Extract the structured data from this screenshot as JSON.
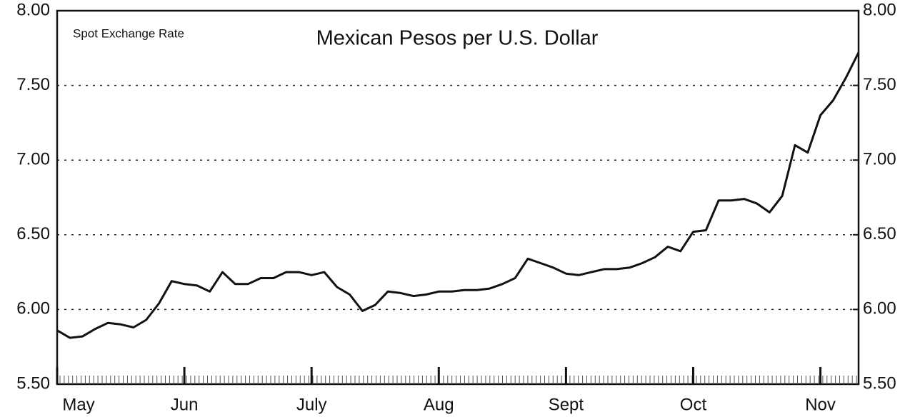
{
  "chart_data": {
    "type": "line",
    "title": "Mexican Pesos per U.S. Dollar",
    "subtitle": "Spot Exchange Rate",
    "categories": [
      "May",
      null,
      null,
      null,
      null,
      null,
      null,
      null,
      null,
      null,
      "Jun",
      null,
      null,
      null,
      null,
      null,
      null,
      null,
      null,
      null,
      "July",
      null,
      null,
      null,
      null,
      null,
      null,
      null,
      null,
      null,
      "Aug",
      null,
      null,
      null,
      null,
      null,
      null,
      null,
      null,
      null,
      "Sept",
      null,
      null,
      null,
      null,
      null,
      null,
      null,
      null,
      null,
      "Oct",
      null,
      null,
      null,
      null,
      null,
      null,
      null,
      null,
      null,
      "Nov",
      null,
      null,
      null
    ],
    "values": [
      5.86,
      5.81,
      5.82,
      5.87,
      5.91,
      5.9,
      5.88,
      5.93,
      6.04,
      6.19,
      6.17,
      6.16,
      6.12,
      6.25,
      6.17,
      6.17,
      6.21,
      6.21,
      6.25,
      6.25,
      6.23,
      6.25,
      6.15,
      6.1,
      5.99,
      6.03,
      6.12,
      6.11,
      6.09,
      6.1,
      6.12,
      6.12,
      6.13,
      6.13,
      6.14,
      6.17,
      6.21,
      6.34,
      6.31,
      6.28,
      6.24,
      6.23,
      6.25,
      6.27,
      6.27,
      6.28,
      6.31,
      6.35,
      6.42,
      6.39,
      6.52,
      6.53,
      6.73,
      6.73,
      6.74,
      6.71,
      6.65,
      6.76,
      7.1,
      7.05,
      7.3,
      7.4,
      7.55,
      7.72
    ],
    "color": "#111111",
    "ylim": [
      5.5,
      8.0
    ],
    "yticks": [
      {
        "value": 5.5,
        "label": "5.50"
      },
      {
        "value": 6.0,
        "label": "6.00"
      },
      {
        "value": 6.5,
        "label": "6.50"
      },
      {
        "value": 7.0,
        "label": "7.00"
      },
      {
        "value": 7.5,
        "label": "7.50"
      },
      {
        "value": 8.0,
        "label": "8.00"
      }
    ],
    "y2lim": [
      5.5,
      8.0
    ],
    "y2ticks": [
      {
        "value": 5.5,
        "label": "5.50"
      },
      {
        "value": 6.0,
        "label": "6.00"
      },
      {
        "value": 6.5,
        "label": "6.50"
      },
      {
        "value": 7.0,
        "label": "7.00"
      },
      {
        "value": 7.5,
        "label": "7.50"
      },
      {
        "value": 8.0,
        "label": "8.00"
      }
    ],
    "grid": true
  }
}
